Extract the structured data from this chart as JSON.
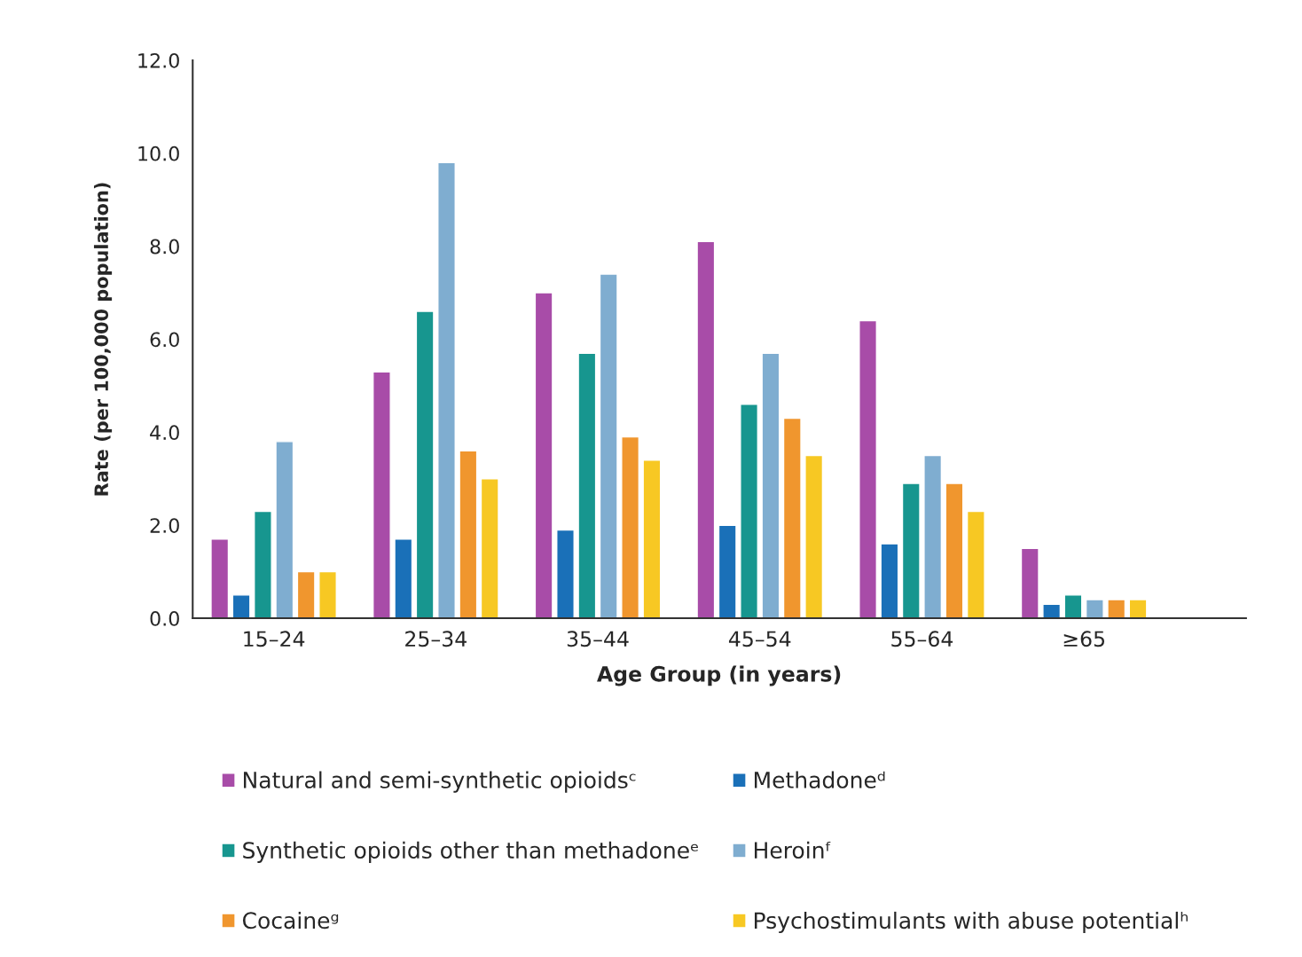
{
  "chart_data": {
    "type": "bar",
    "xlabel": "Age Group (in years)",
    "ylabel": "Rate (per 100,000 population)",
    "categories": [
      "15–24",
      "25–34",
      "35–44",
      "45–54",
      "55–64",
      "≥65"
    ],
    "series": [
      {
        "name": "Natural and semi-synthetic opioidsᶜ",
        "color": "#a84ca8",
        "values": [
          1.7,
          5.3,
          7.0,
          8.1,
          6.4,
          1.5
        ]
      },
      {
        "name": "Methadoneᵈ",
        "color": "#1a70b8",
        "values": [
          0.5,
          1.7,
          1.9,
          2.0,
          1.6,
          0.3
        ]
      },
      {
        "name": "Synthetic opioids other than methadoneᵉ",
        "color": "#17968f",
        "values": [
          2.3,
          6.6,
          5.7,
          4.6,
          2.9,
          0.5
        ]
      },
      {
        "name": "Heroinᶠ",
        "color": "#7fadd0",
        "values": [
          3.8,
          9.8,
          7.4,
          5.7,
          3.5,
          0.4
        ]
      },
      {
        "name": "Cocaineᵍ",
        "color": "#f0962e",
        "values": [
          1.0,
          3.6,
          3.9,
          4.3,
          2.9,
          0.4
        ]
      },
      {
        "name": "Psychostimulants with abuse potentialʰ",
        "color": "#f7c823",
        "values": [
          1.0,
          3.0,
          3.4,
          3.5,
          2.3,
          0.4
        ]
      }
    ],
    "ylim": [
      0,
      12
    ],
    "yticks": [
      {
        "value": 0,
        "label": "0.0"
      },
      {
        "value": 2,
        "label": "2.0"
      },
      {
        "value": 4,
        "label": "4.0"
      },
      {
        "value": 6,
        "label": "6.0"
      },
      {
        "value": 8,
        "label": "8.0"
      },
      {
        "value": 10,
        "label": "10.0"
      },
      {
        "value": 12,
        "label": "12.0"
      }
    ],
    "grid": false,
    "legend": "bottom"
  }
}
